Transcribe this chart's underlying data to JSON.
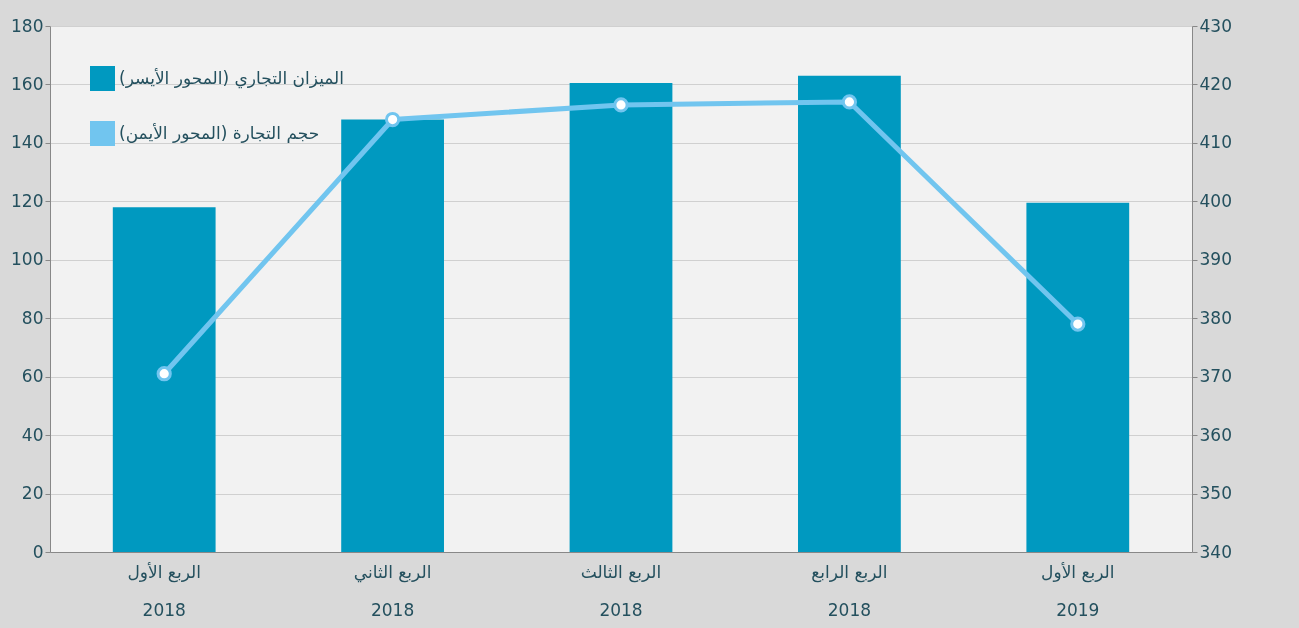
{
  "chart_data": {
    "type": "bar",
    "categories": [
      "الربع الأول\n2018",
      "الربع الثاني\n2018",
      "الربع الثالث\n2018",
      "الربع الرابع\n2018",
      "الربع الأول\n2019"
    ],
    "series": [
      {
        "name": "الميزان التجاري (المحور الأيسر)",
        "color": "#0099c0",
        "values": [
          118,
          148,
          160.5,
          163,
          119.5
        ]
      },
      {
        "name": "حجم التجارة (المحور الأيمن)",
        "type": "line",
        "axis": "y2",
        "color": "#71c5ef",
        "marker": "circle",
        "values": [
          370.5,
          414,
          416.5,
          417,
          379
        ]
      }
    ],
    "ylim": [
      0,
      180
    ],
    "yticks": [
      0,
      20,
      40,
      60,
      80,
      100,
      120,
      140,
      160,
      180
    ],
    "y2lim": [
      340,
      430
    ],
    "y2ticks": [
      340,
      350,
      360,
      370,
      380,
      390,
      400,
      410,
      420,
      430
    ],
    "grid": "y",
    "legend": "top left"
  }
}
